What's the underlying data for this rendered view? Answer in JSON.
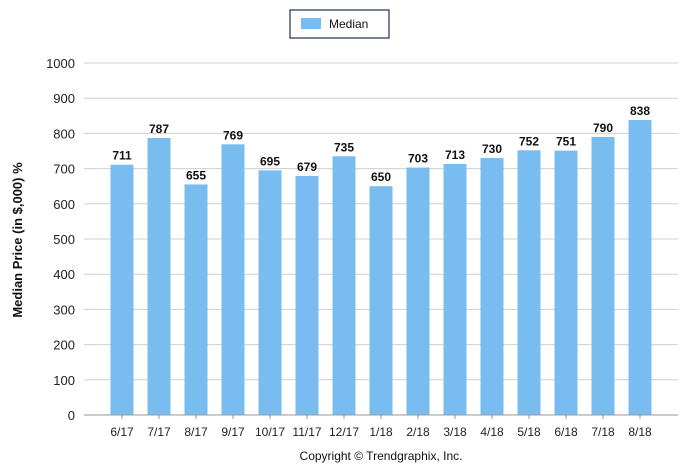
{
  "chart_data": {
    "type": "bar",
    "categories": [
      "6/17",
      "7/17",
      "8/17",
      "9/17",
      "10/17",
      "11/17",
      "12/17",
      "1/18",
      "2/18",
      "3/18",
      "4/18",
      "5/18",
      "6/18",
      "7/18",
      "8/18"
    ],
    "series": [
      {
        "name": "Median",
        "values": [
          711,
          787,
          655,
          769,
          695,
          679,
          735,
          650,
          703,
          713,
          730,
          752,
          751,
          790,
          838
        ],
        "color": "#79bcef"
      }
    ],
    "ylabel": "Median Price (in $,000) %",
    "ylim": [
      0,
      1000
    ],
    "yticks": [
      0,
      100,
      200,
      300,
      400,
      500,
      600,
      700,
      800,
      900,
      1000
    ],
    "grid": true,
    "legend_position": "top-center",
    "data_labels": true,
    "footer": "Copyright © Trendgraphix, Inc."
  }
}
